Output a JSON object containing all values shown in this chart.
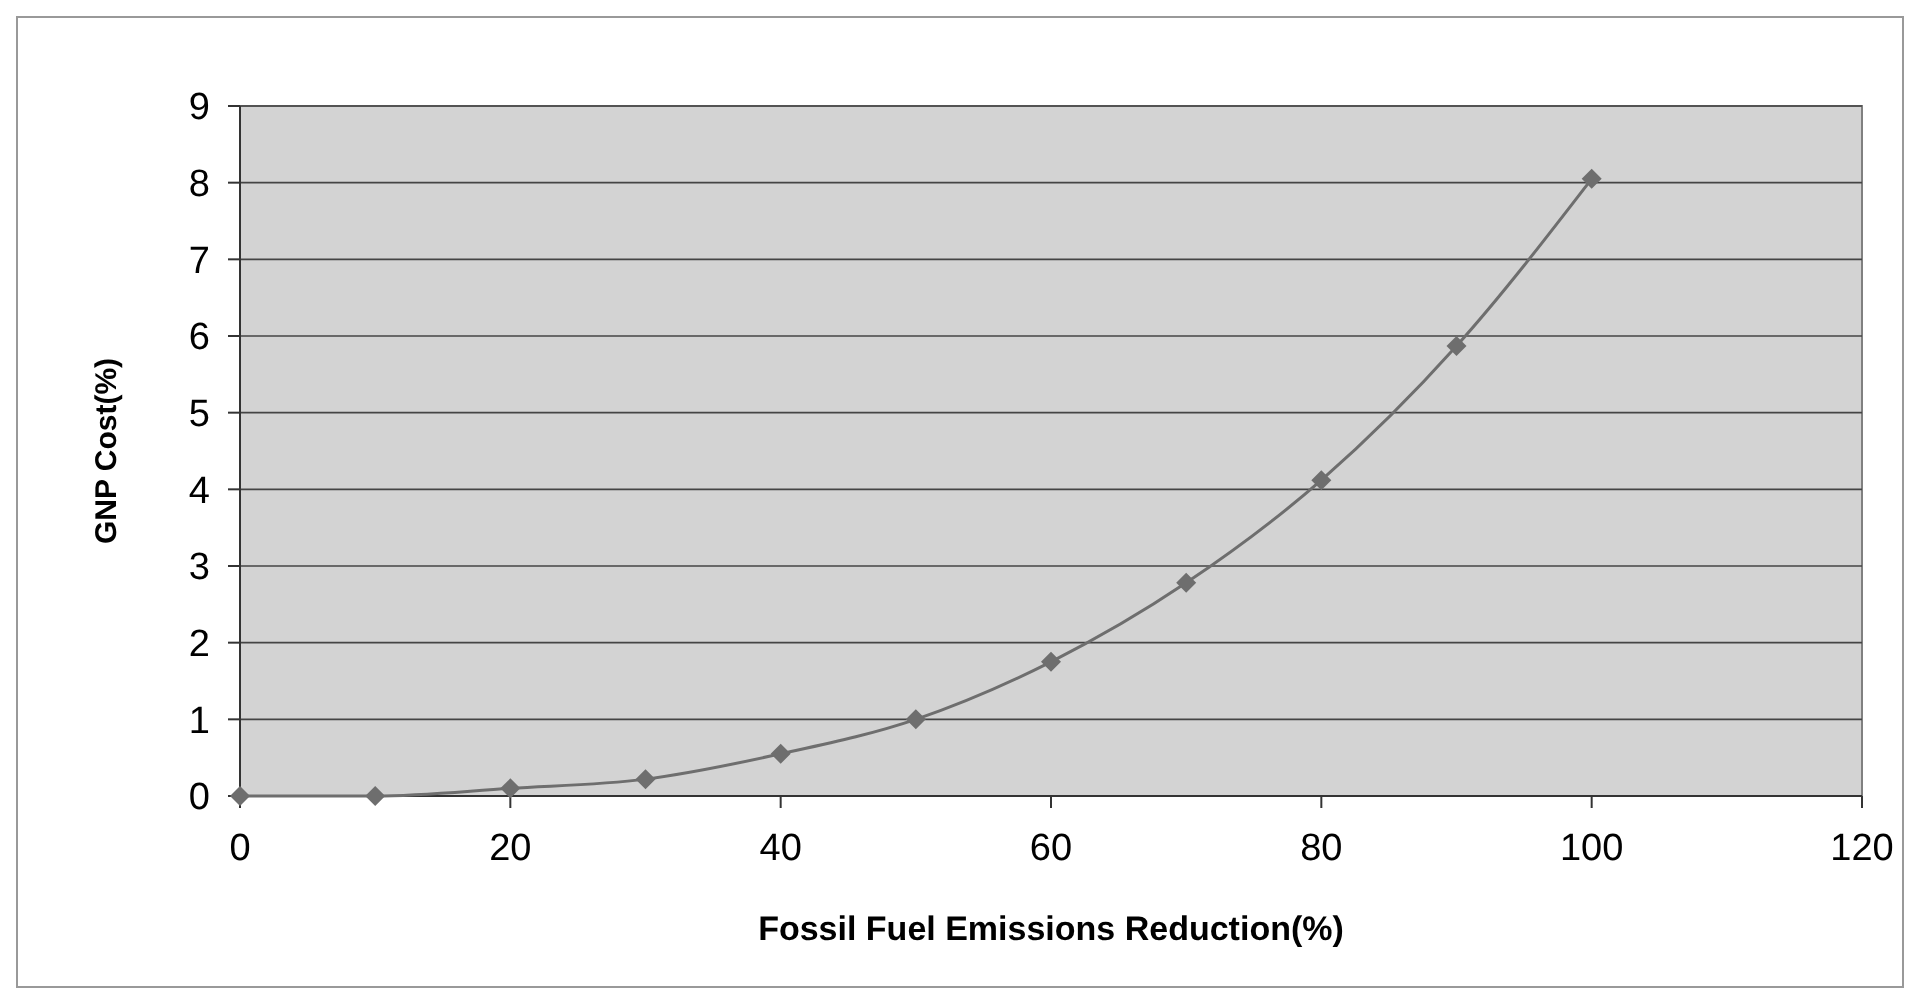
{
  "chart_data": {
    "type": "line",
    "xlabel": "Fossil Fuel Emissions Reduction(%)",
    "ylabel": "GNP Cost(%)",
    "x": [
      0,
      10,
      20,
      30,
      40,
      50,
      60,
      70,
      80,
      90,
      100
    ],
    "series": [
      {
        "color": "#6e6e6e",
        "values": [
          0,
          0,
          0.1,
          0.22,
          0.55,
          1.0,
          1.75,
          2.78,
          4.12,
          5.87,
          8.05
        ]
      }
    ],
    "xlim": [
      0,
      120
    ],
    "xticks": [
      0,
      20,
      40,
      60,
      80,
      100,
      120
    ],
    "ylim": [
      0,
      9
    ],
    "yticks": [
      0,
      1,
      2,
      3,
      4,
      5,
      6,
      7,
      8,
      9
    ],
    "grid": "y",
    "marker": "diamond",
    "line_style": "solid"
  }
}
